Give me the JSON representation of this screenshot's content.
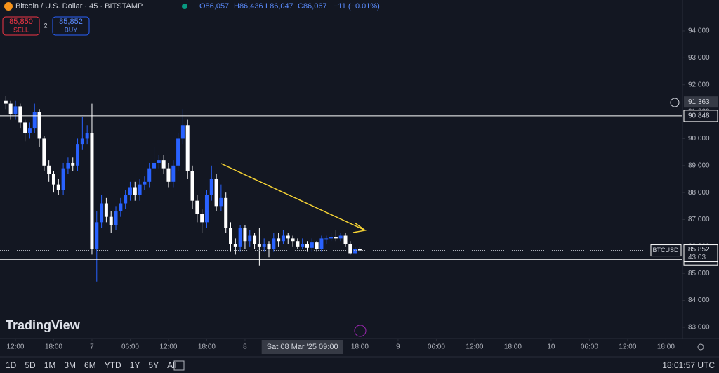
{
  "chart_data": {
    "type": "candlestick",
    "title": "Bitcoin / U.S. Dollar · 45 · BITSTAMP",
    "ohlc_header": {
      "open": "O86,057",
      "high": "H86,436",
      "low": "L86,047",
      "close": "C86,067",
      "change": "−11 (−0.01%)"
    },
    "sell": {
      "price": "85,850",
      "label": "SELL"
    },
    "spread": "2",
    "buy": {
      "price": "85,852",
      "label": "BUY"
    },
    "logo": "TradingView",
    "up_color": "#2962ff",
    "down_color": "#ffffff",
    "x": [
      -1.5,
      -0.75,
      0,
      0.75,
      1.5,
      2.25,
      3,
      3.75,
      4.5,
      5.25,
      6,
      6.75,
      7.5,
      8.25,
      9,
      9.75,
      10.5,
      11.25,
      12,
      12.75,
      13.5,
      14.25,
      15,
      15.75,
      16.5,
      17.25,
      18,
      18.75,
      19.5,
      20.25,
      21,
      21.75,
      22.5,
      23.25,
      24,
      24.75,
      25.5,
      26.25,
      27,
      27.75,
      28.5,
      29.25,
      30,
      30.75,
      31.5,
      32.25,
      33,
      33.75,
      34.5,
      35.25,
      36,
      36.75,
      37.5,
      38.25,
      39,
      39.75,
      40.5,
      41.25,
      42,
      42.75,
      43.5,
      44.25,
      45,
      45.75,
      46.5,
      47.25,
      48,
      48.75,
      49.5,
      50.25,
      51,
      51.75,
      52.5,
      53.25,
      54
    ],
    "open": [
      91400,
      91300,
      90900,
      91200,
      90600,
      90200,
      90400,
      91000,
      90000,
      89000,
      88700,
      88300,
      88100,
      88900,
      89100,
      89000,
      89800,
      90000,
      90200,
      85900,
      86900,
      87600,
      87100,
      86800,
      87300,
      87600,
      87900,
      88200,
      87900,
      88300,
      88400,
      88900,
      89100,
      89200,
      88900,
      88400,
      89000,
      90000,
      90500,
      88800,
      87700,
      87200,
      86900,
      87900,
      88500,
      87500,
      87800,
      86700,
      86100,
      86000,
      86700,
      86200,
      86400,
      86100,
      86000,
      86100,
      85900,
      86300,
      86200,
      86400,
      86300,
      86200,
      86000,
      86100,
      85950,
      86150,
      85900,
      86300,
      86300,
      86350,
      86300,
      86400,
      86100,
      85750,
      85900
    ],
    "high": [
      91600,
      91400,
      91400,
      91300,
      90700,
      90600,
      91300,
      91100,
      90100,
      89200,
      88800,
      88500,
      89100,
      89300,
      89300,
      90000,
      90800,
      90500,
      91300,
      87300,
      87900,
      87800,
      87300,
      87500,
      87800,
      88100,
      88400,
      88400,
      88500,
      88600,
      89100,
      89700,
      89400,
      89400,
      89100,
      89200,
      90200,
      91100,
      90700,
      89000,
      87900,
      87400,
      88100,
      89000,
      88700,
      88300,
      88000,
      86900,
      86300,
      86800,
      86800,
      86600,
      86500,
      86700,
      86300,
      86200,
      86500,
      86500,
      86600,
      86500,
      86400,
      86300,
      86300,
      86200,
      86300,
      86200,
      86400,
      86400,
      86500,
      86600,
      86500,
      86500,
      86200,
      86000,
      86000
    ],
    "low": [
      91100,
      90700,
      90700,
      90400,
      89900,
      90000,
      90200,
      89700,
      88800,
      88400,
      88000,
      87900,
      87900,
      88700,
      88800,
      88800,
      89600,
      89800,
      85700,
      84700,
      86700,
      86900,
      86500,
      86600,
      87100,
      87400,
      87700,
      87700,
      87700,
      88100,
      88200,
      88700,
      88900,
      88700,
      88200,
      88200,
      88800,
      89800,
      88500,
      87400,
      86900,
      86500,
      86700,
      87700,
      87300,
      87300,
      86500,
      85800,
      85700,
      85800,
      85900,
      86000,
      85900,
      85300,
      85800,
      85600,
      85800,
      86000,
      86100,
      86100,
      86000,
      85900,
      85900,
      85800,
      85800,
      85800,
      85800,
      86100,
      86200,
      86200,
      86200,
      86000,
      85700,
      85700,
      85800
    ],
    "close": [
      91300,
      90900,
      91200,
      90600,
      90200,
      90400,
      91000,
      90000,
      89000,
      88700,
      88300,
      88100,
      88900,
      89100,
      89000,
      89800,
      90000,
      90200,
      85900,
      86900,
      87600,
      87100,
      86800,
      87300,
      87600,
      87900,
      88200,
      87900,
      88300,
      88400,
      88900,
      89100,
      89200,
      88900,
      88400,
      89000,
      90000,
      90500,
      88800,
      87700,
      87200,
      86900,
      87900,
      88500,
      87500,
      87800,
      86700,
      86100,
      86000,
      86700,
      86200,
      86400,
      86100,
      86000,
      86100,
      85900,
      86300,
      86200,
      86400,
      86300,
      86200,
      86000,
      86100,
      85950,
      86150,
      85900,
      86300,
      86300,
      86350,
      86300,
      86400,
      86100,
      85750,
      85900,
      85852
    ],
    "xlim": [
      -2.42,
      104.6
    ],
    "xticks": [
      {
        "value": 0,
        "label": "12:00"
      },
      {
        "value": 6,
        "label": "18:00"
      },
      {
        "value": 12,
        "label": "7"
      },
      {
        "value": 18,
        "label": "06:00"
      },
      {
        "value": 24,
        "label": "12:00"
      },
      {
        "value": 30,
        "label": "18:00"
      },
      {
        "value": 36,
        "label": "8"
      },
      {
        "value": 54,
        "label": "18:00"
      },
      {
        "value": 60,
        "label": "9"
      },
      {
        "value": 66,
        "label": "06:00"
      },
      {
        "value": 72,
        "label": "12:00"
      },
      {
        "value": 78,
        "label": "18:00"
      },
      {
        "value": 84,
        "label": "10"
      },
      {
        "value": 90,
        "label": "06:00"
      },
      {
        "value": 96,
        "label": "12:00"
      },
      {
        "value": 102,
        "label": "18:00"
      }
    ],
    "crosshair_time": {
      "value": 45,
      "label": "Sat 08 Mar '25  09:00"
    },
    "ylim": [
      82582,
      95147
    ],
    "yticks": [
      {
        "value": 83000,
        "label": "83,000"
      },
      {
        "value": 84000,
        "label": "84,000"
      },
      {
        "value": 85000,
        "label": "85,000"
      },
      {
        "value": 86000,
        "label": "86,000"
      },
      {
        "value": 87000,
        "label": "87,000"
      },
      {
        "value": 88000,
        "label": "88,000"
      },
      {
        "value": 89000,
        "label": "89,000"
      },
      {
        "value": 90000,
        "label": "90,000"
      },
      {
        "value": 91000,
        "label": "91,000"
      },
      {
        "value": 92000,
        "label": "92,000"
      },
      {
        "value": 93000,
        "label": "93,000"
      },
      {
        "value": 94000,
        "label": "94,000"
      }
    ],
    "horizontal_lines": [
      {
        "value": 90848,
        "label": "90,848"
      },
      {
        "value": 85522,
        "label": "85,522"
      }
    ],
    "crosshair_price": {
      "value": 91363,
      "label": "91,363"
    },
    "last_price": {
      "symbol": "BTCUSD",
      "value": 85852,
      "label": "85,852",
      "countdown": "43:03"
    },
    "ranges": [
      "1D",
      "5D",
      "1M",
      "3M",
      "6M",
      "YTD",
      "1Y",
      "5Y",
      "All"
    ],
    "clock": "18:01:57 UTC"
  }
}
